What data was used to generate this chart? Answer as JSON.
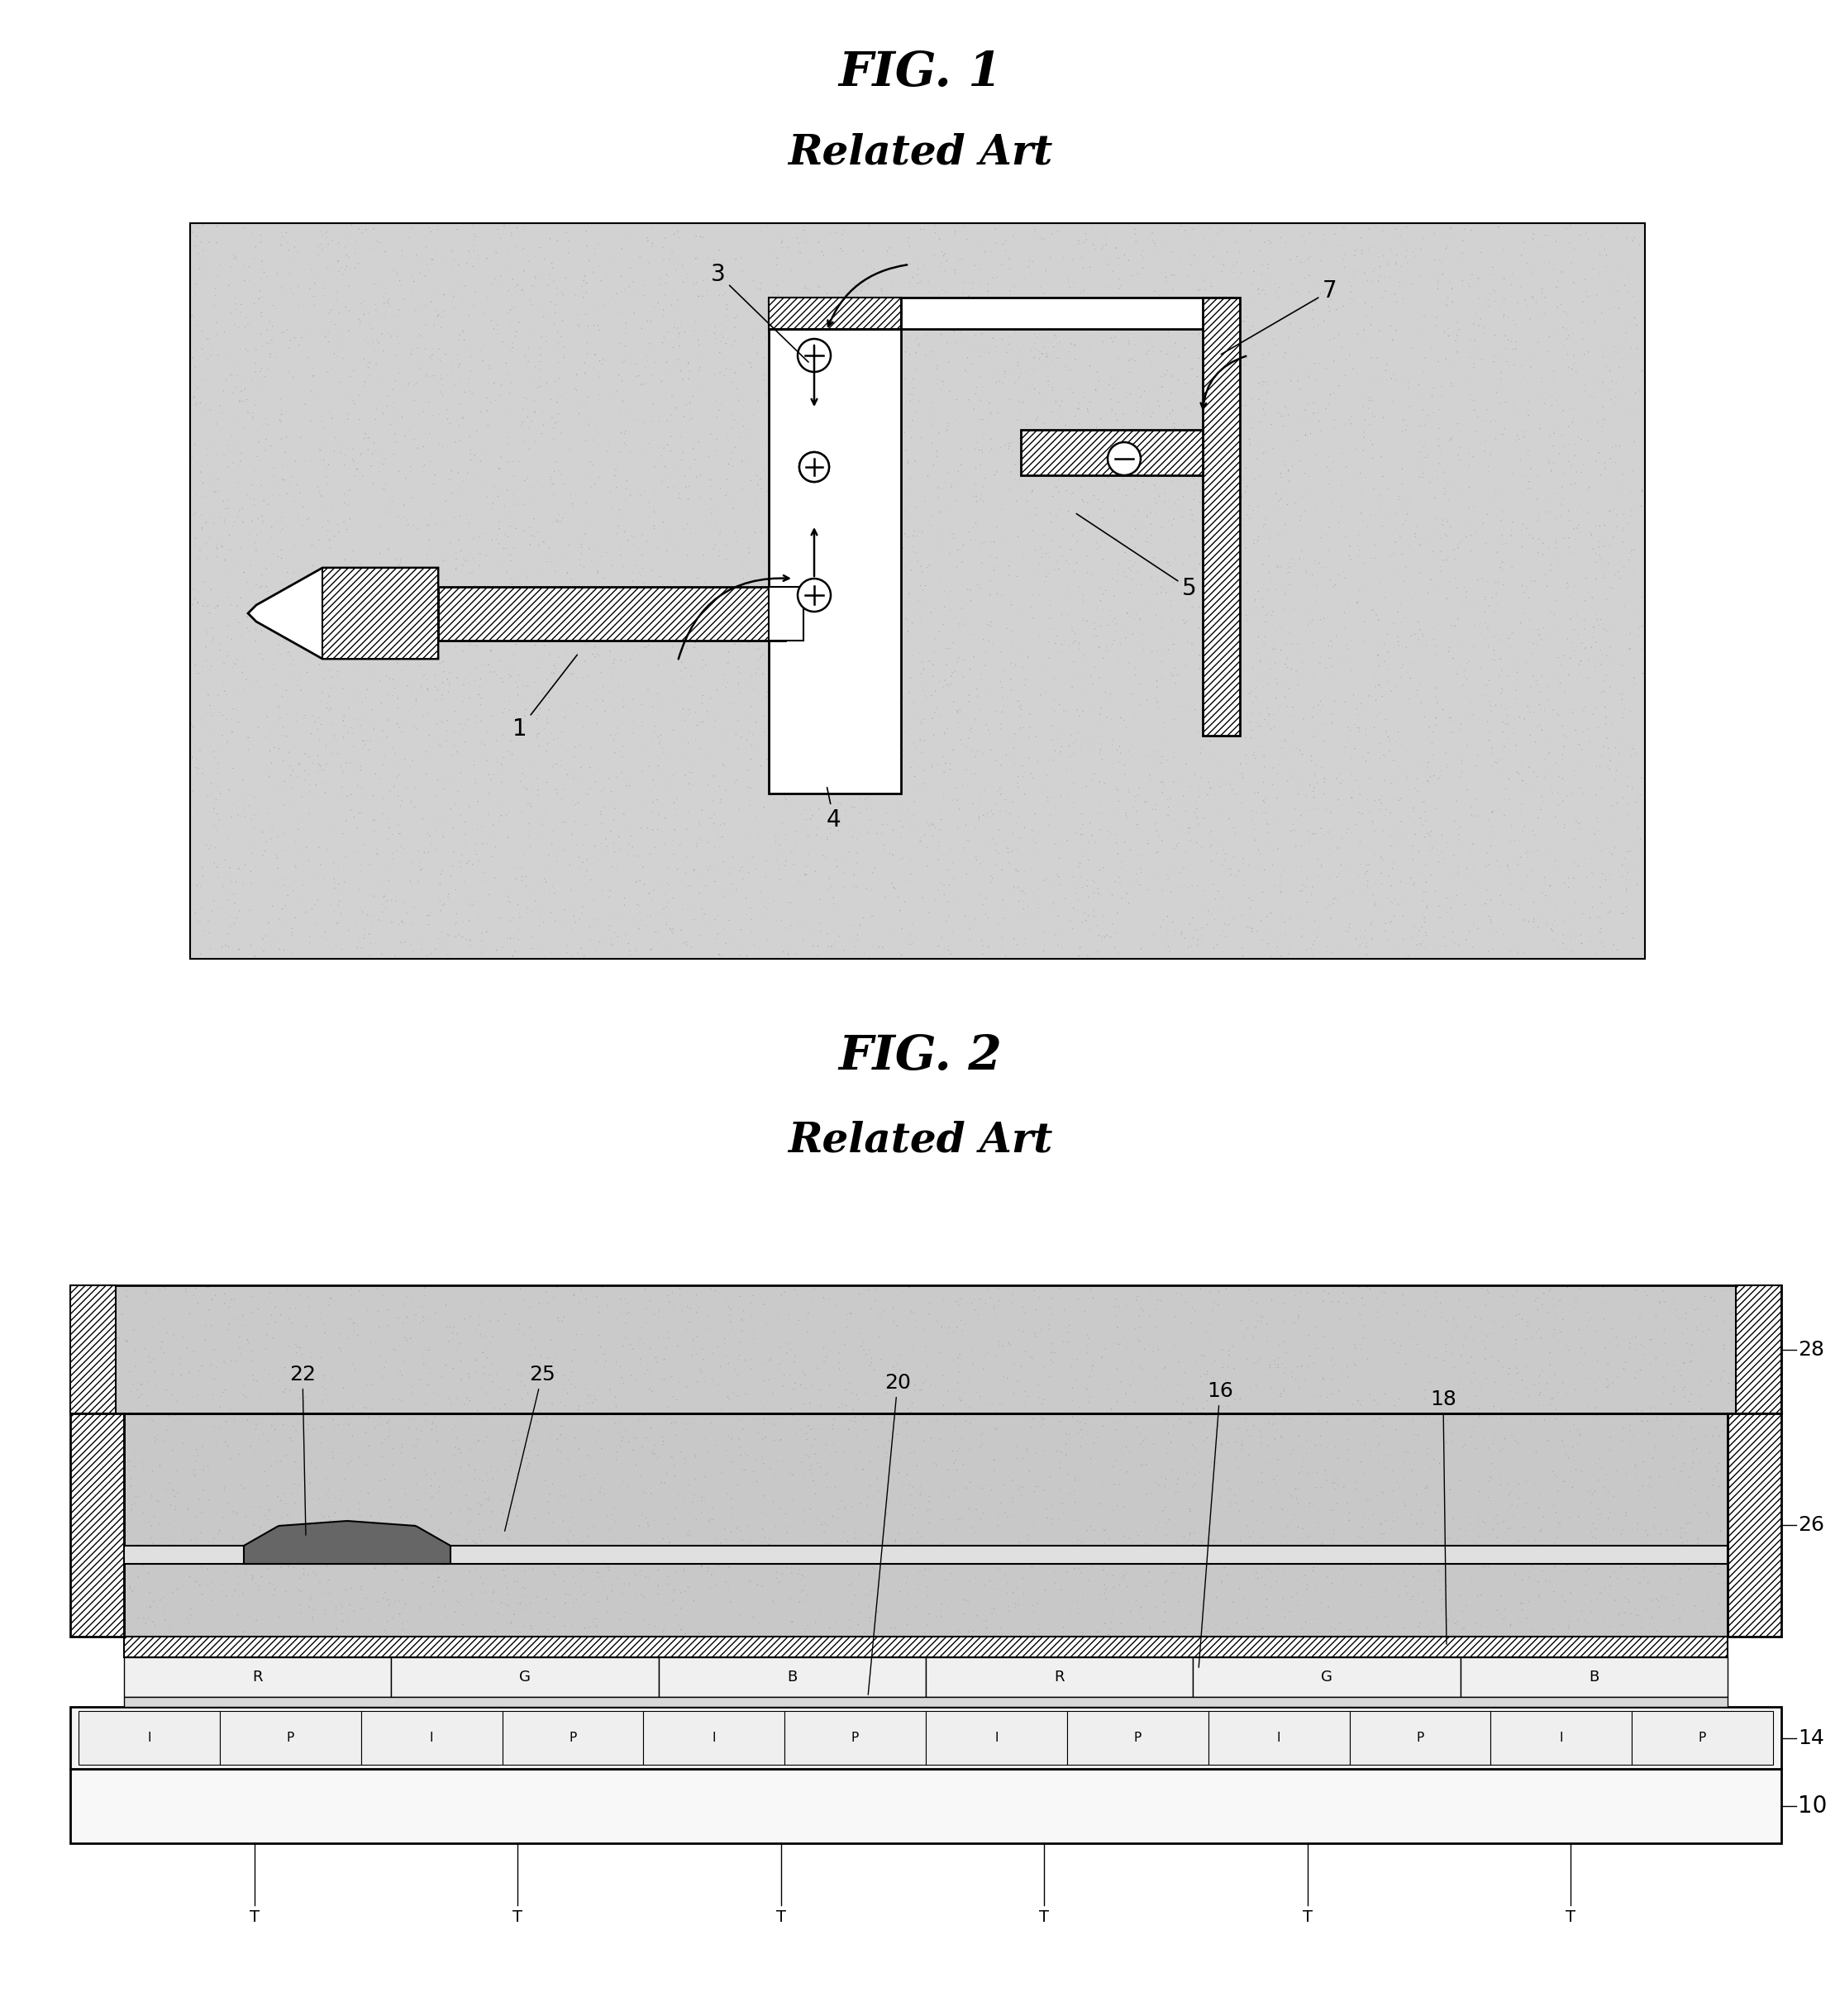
{
  "fig1_title": "FIG. 1",
  "fig2_title": "FIG. 2",
  "related_art": "Related Art",
  "bg_color": "#ffffff",
  "title_fontsize": 42,
  "subtitle_fontsize": 36,
  "label_fontsize": 20,
  "fig1_bg": "#d8d8d8",
  "fig2_bg": "#d8d8d8",
  "rgb_labels": [
    "R",
    "G",
    "B",
    "R",
    "G",
    "B"
  ],
  "ip_labels": [
    "I",
    "P",
    "I",
    "P",
    "I",
    "P",
    "I",
    "P",
    "I",
    "P",
    "I",
    "P"
  ],
  "t_labels": [
    "T",
    "T",
    "T",
    "T",
    "T",
    "T"
  ]
}
